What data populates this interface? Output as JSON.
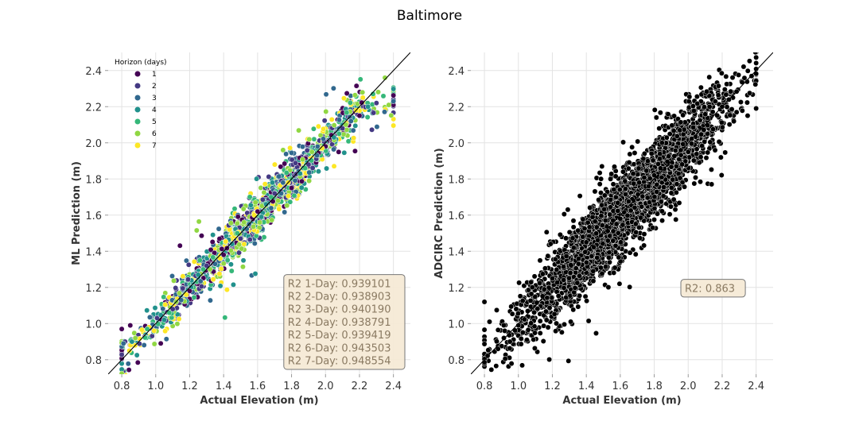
{
  "figure": {
    "title": "Baltimore"
  },
  "chart_data": [
    {
      "type": "scatter",
      "xlabel": "Actual Elevation (m)",
      "ylabel": "ML Prediction (m)",
      "xlim": [
        0.72,
        2.5
      ],
      "ylim": [
        0.72,
        2.5
      ],
      "xticks": [
        "0.8",
        "1.0",
        "1.2",
        "1.4",
        "1.6",
        "1.8",
        "2.0",
        "2.2",
        "2.4"
      ],
      "yticks": [
        "0.8",
        "1.0",
        "1.2",
        "1.4",
        "1.6",
        "1.8",
        "2.0",
        "2.2",
        "2.4"
      ],
      "grid": true,
      "reference_line": "y = x",
      "legend": {
        "title": "Horizon (days)",
        "placement": "top-left",
        "entries": [
          "1",
          "2",
          "3",
          "4",
          "5",
          "6",
          "7"
        ]
      },
      "series": [
        {
          "name": "1",
          "color": "#440154",
          "sample_points": [
            [
              0.8,
              0.97
            ],
            [
              0.85,
              0.99
            ],
            [
              1.2,
              1.18
            ],
            [
              1.4,
              1.38
            ],
            [
              1.6,
              1.62
            ],
            [
              1.8,
              1.75
            ],
            [
              2.0,
              1.98
            ],
            [
              2.2,
              2.15
            ]
          ]
        },
        {
          "name": "2",
          "color": "#443983",
          "sample_points": [
            [
              0.82,
              0.9
            ],
            [
              1.1,
              1.08
            ],
            [
              1.3,
              1.32
            ],
            [
              1.5,
              1.47
            ],
            [
              1.7,
              1.72
            ],
            [
              1.9,
              1.88
            ],
            [
              2.1,
              2.08
            ],
            [
              2.3,
              2.22
            ]
          ]
        },
        {
          "name": "3",
          "color": "#31688e",
          "sample_points": [
            [
              0.81,
              0.89
            ],
            [
              1.15,
              1.13
            ],
            [
              1.35,
              1.33
            ],
            [
              1.55,
              1.55
            ],
            [
              1.75,
              1.78
            ],
            [
              1.95,
              1.93
            ],
            [
              2.15,
              2.12
            ],
            [
              2.4,
              2.23
            ]
          ]
        },
        {
          "name": "4",
          "color": "#21918c",
          "sample_points": [
            [
              0.86,
              0.9
            ],
            [
              1.05,
              1.02
            ],
            [
              1.25,
              1.27
            ],
            [
              1.45,
              1.44
            ],
            [
              1.65,
              1.66
            ],
            [
              1.85,
              1.83
            ],
            [
              2.05,
              2.03
            ],
            [
              2.25,
              2.2
            ]
          ]
        },
        {
          "name": "5",
          "color": "#35b779",
          "sample_points": [
            [
              0.95,
              0.97
            ],
            [
              1.08,
              1.06
            ],
            [
              1.28,
              1.3
            ],
            [
              1.48,
              1.5
            ],
            [
              1.68,
              1.7
            ],
            [
              1.88,
              1.86
            ],
            [
              2.08,
              2.05
            ],
            [
              2.28,
              2.27
            ]
          ]
        },
        {
          "name": "6",
          "color": "#90d743",
          "sample_points": [
            [
              0.88,
              0.92
            ],
            [
              1.12,
              1.12
            ],
            [
              1.32,
              1.3
            ],
            [
              1.52,
              1.56
            ],
            [
              1.72,
              1.68
            ],
            [
              1.92,
              1.95
            ],
            [
              2.12,
              2.1
            ],
            [
              2.35,
              2.36
            ]
          ]
        },
        {
          "name": "7",
          "color": "#fde725",
          "sample_points": [
            [
              0.99,
              0.96
            ],
            [
              1.18,
              1.16
            ],
            [
              1.38,
              1.36
            ],
            [
              1.58,
              1.6
            ],
            [
              1.78,
              1.78
            ],
            [
              1.98,
              1.97
            ],
            [
              2.18,
              2.18
            ],
            [
              2.22,
              2.25
            ]
          ]
        }
      ],
      "annotation": {
        "placement": "bottom-right",
        "lines": [
          "R2 1-Day: 0.939101",
          "R2 2-Day: 0.938903",
          "R2 3-Day: 0.940190",
          "R2 4-Day: 0.938791",
          "R2 5-Day: 0.939419",
          "R2 6-Day: 0.943503",
          "R2 7-Day: 0.948554"
        ]
      }
    },
    {
      "type": "scatter",
      "xlabel": "Actual Elevation (m)",
      "ylabel": "ADCIRC Prediction (m)",
      "xlim": [
        0.72,
        2.5
      ],
      "ylim": [
        0.72,
        2.5
      ],
      "xticks": [
        "0.8",
        "1.0",
        "1.2",
        "1.4",
        "1.6",
        "1.8",
        "2.0",
        "2.2",
        "2.4"
      ],
      "yticks": [
        "0.8",
        "1.0",
        "1.2",
        "1.4",
        "1.6",
        "1.8",
        "2.0",
        "2.2",
        "2.4"
      ],
      "grid": true,
      "reference_line": "y = x",
      "series": [
        {
          "color": "#000000",
          "sample_points": [
            [
              0.8,
              1.12
            ],
            [
              0.83,
              1.01
            ],
            [
              0.88,
              0.86
            ],
            [
              0.95,
              0.9
            ],
            [
              1.0,
              0.99
            ],
            [
              1.05,
              0.91
            ],
            [
              1.2,
              1.25
            ],
            [
              1.4,
              1.45
            ],
            [
              1.6,
              1.58
            ],
            [
              1.8,
              1.82
            ],
            [
              2.0,
              1.95
            ],
            [
              2.2,
              2.2
            ],
            [
              2.35,
              2.15
            ],
            [
              2.4,
              2.19
            ]
          ]
        }
      ],
      "annotation": {
        "placement": "right-middle",
        "lines": [
          "R2: 0.863"
        ]
      }
    }
  ]
}
